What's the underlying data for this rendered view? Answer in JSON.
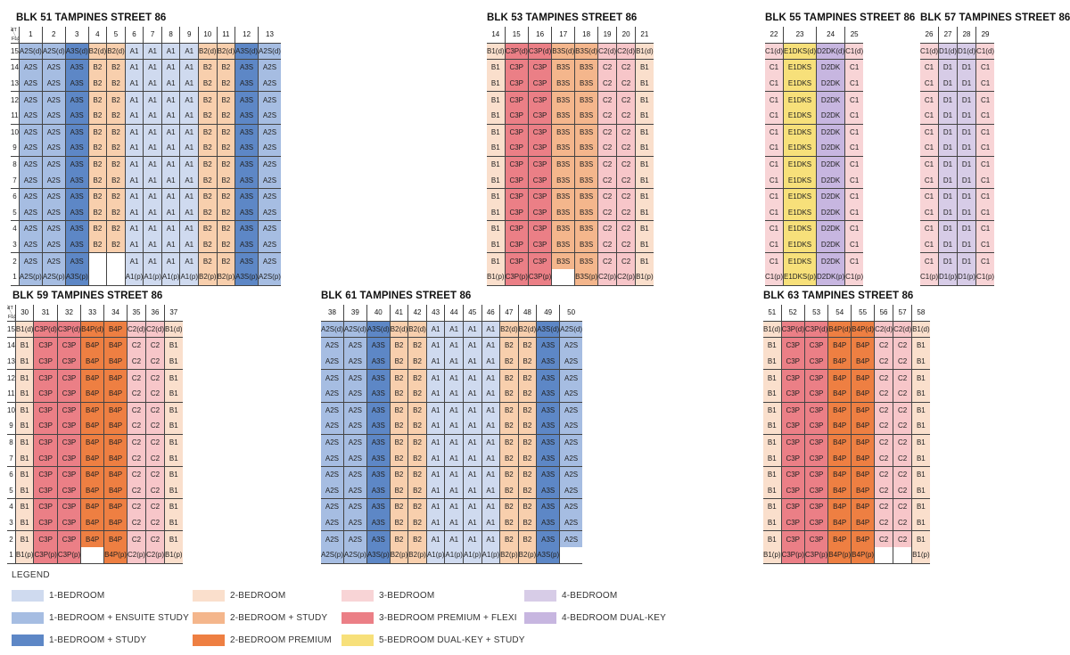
{
  "colors": {
    "A1": "#cfdaef",
    "A2S": "#a6bde2",
    "A3S": "#5d87c6",
    "B1": "#fadfcc",
    "B2": "#f8cfad",
    "B3S": "#f4b68c",
    "B4P": "#ee7f42",
    "C1": "#f8d4d6",
    "C2": "#f7c6c9",
    "C3P": "#eb7f86",
    "D1": "#d7cce7",
    "D2DK": "#c7b6e0",
    "E1DKS": "#f7e07a"
  },
  "corner": {
    "unit": "UNIT",
    "floor": "FLOOR"
  },
  "blocks": [
    {
      "title": "BLK 51 TAMPINES STREET 86",
      "units": [
        "1",
        "2",
        "3",
        "4",
        "5",
        "6",
        "7",
        "8",
        "9",
        "10",
        "11",
        "12",
        "13"
      ],
      "types": [
        "A2S",
        "A2S",
        "A3S",
        "B2",
        "B2",
        "A1",
        "A1",
        "A1",
        "A1",
        "B2",
        "B2",
        "A3S",
        "A2S"
      ],
      "top": [
        "A2S(d)",
        "A2S(d)",
        "A3S(d)",
        "B2(d)",
        "B2(d)",
        "A1",
        "A1",
        "A1",
        "A1",
        "B2(d)",
        "B2(d)",
        "A3S(d)",
        "A2S(d)"
      ],
      "body": [
        "A2S",
        "A2S",
        "A3S",
        "B2",
        "B2",
        "A1",
        "A1",
        "A1",
        "A1",
        "B2",
        "B2",
        "A3S",
        "A2S"
      ],
      "f2": [
        "A2S",
        "A2S",
        "A3S",
        "",
        "",
        "A1",
        "A1",
        "A1",
        "A1",
        "B2",
        "B2",
        "A3S",
        "A2S"
      ],
      "f1": [
        "A2S(p)",
        "A2S(p)",
        "A3S(p)",
        "",
        "",
        "A1(p)",
        "A1(p)",
        "A1(p)",
        "A1(p)",
        "B2(p)",
        "B2(p)",
        "A3S(p)",
        "A2S(p)"
      ]
    },
    {
      "title": "BLK 53 TAMPINES STREET 86",
      "units": [
        "14",
        "15",
        "16",
        "17",
        "18",
        "19",
        "20",
        "21"
      ],
      "types": [
        "B1",
        "C3P",
        "C3P",
        "B3S",
        "B3S",
        "C2",
        "C2",
        "B1"
      ],
      "top": [
        "B1(d)",
        "C3P(d)",
        "C3P(d)",
        "B3S(d)",
        "B3S(d)",
        "C2(d)",
        "C2(d)",
        "B1(d)"
      ],
      "body": [
        "B1",
        "C3P",
        "C3P",
        "B3S",
        "B3S",
        "C2",
        "C2",
        "B1"
      ],
      "f1": [
        "B1(p)",
        "C3P(p)",
        "C3P(p)",
        "",
        "B3S(p)",
        "C2(p)",
        "C2(p)",
        "B1(p)"
      ]
    },
    {
      "title": "BLK 55 TAMPINES STREET 86",
      "units": [
        "22",
        "23",
        "24",
        "25"
      ],
      "types": [
        "C1",
        "E1DKS",
        "D2DK",
        "C1"
      ],
      "top": [
        "C1(d)",
        "E1DKS(d)",
        "D2DK(d)",
        "C1(d)"
      ],
      "body": [
        "C1",
        "E1DKS",
        "D2DK",
        "C1"
      ],
      "f1": [
        "C1(p)",
        "E1DKS(p)",
        "D2DK(p)",
        "C1(p)"
      ]
    },
    {
      "title": "BLK 57 TAMPINES STREET 86",
      "units": [
        "26",
        "27",
        "28",
        "29"
      ],
      "types": [
        "C1",
        "D1",
        "D1",
        "C1"
      ],
      "top": [
        "C1(d)",
        "D1(d)",
        "D1(d)",
        "C1(d)"
      ],
      "body": [
        "C1",
        "D1",
        "D1",
        "C1"
      ],
      "f1": [
        "C1(p)",
        "D1(p)",
        "D1(p)",
        "C1(p)"
      ]
    },
    {
      "title": "BLK 59 TAMPINES STREET 86",
      "units": [
        "30",
        "31",
        "32",
        "33",
        "34",
        "35",
        "36",
        "37"
      ],
      "types": [
        "B1",
        "C3P",
        "C3P",
        "B4P",
        "B4P",
        "C2",
        "C2",
        "B1"
      ],
      "top": [
        "B1(d)",
        "C3P(d)",
        "C3P(d)",
        "B4P(d)",
        "B4P",
        "C2(d)",
        "C2(d)",
        "B1(d)"
      ],
      "body": [
        "B1",
        "C3P",
        "C3P",
        "B4P",
        "B4P",
        "C2",
        "C2",
        "B1"
      ],
      "f1": [
        "B1(p)",
        "C3P(p)",
        "C3P(p)",
        "",
        "B4P(p)",
        "C2(p)",
        "C2(p)",
        "B1(p)"
      ]
    },
    {
      "title": "BLK 61 TAMPINES STREET 86",
      "units": [
        "38",
        "39",
        "40",
        "41",
        "42",
        "43",
        "44",
        "45",
        "46",
        "47",
        "48",
        "49",
        "50"
      ],
      "types": [
        "A2S",
        "A2S",
        "A3S",
        "B2",
        "B2",
        "A1",
        "A1",
        "A1",
        "A1",
        "B2",
        "B2",
        "A3S",
        "A2S"
      ],
      "top": [
        "A2S(d)",
        "A2S(d)",
        "A3S(d)",
        "B2(d)",
        "B2(d)",
        "A1",
        "A1",
        "A1",
        "A1",
        "B2(d)",
        "B2(d)",
        "A3S(d)",
        "A2S(d)"
      ],
      "body": [
        "A2S",
        "A2S",
        "A3S",
        "B2",
        "B2",
        "A1",
        "A1",
        "A1",
        "A1",
        "B2",
        "B2",
        "A3S",
        "A2S"
      ],
      "f1": [
        "A2S(p)",
        "A2S(p)",
        "A3S(p)",
        "B2(p)",
        "B2(p)",
        "A1(p)",
        "A1(p)",
        "A1(p)",
        "A1(p)",
        "B2(p)",
        "B2(p)",
        "A3S(p)",
        ""
      ]
    },
    {
      "title": "BLK 63 TAMPINES STREET 86",
      "units": [
        "51",
        "52",
        "53",
        "54",
        "55",
        "56",
        "57",
        "58"
      ],
      "types": [
        "B1",
        "C3P",
        "C3P",
        "B4P",
        "B4P",
        "C2",
        "C2",
        "B1"
      ],
      "top": [
        "B1(d)",
        "C3P(d)",
        "C3P(d)",
        "B4P(d)",
        "B4P(d)",
        "C2(d)",
        "C2(d)",
        "B1(d)"
      ],
      "body": [
        "B1",
        "C3P",
        "C3P",
        "B4P",
        "B4P",
        "C2",
        "C2",
        "B1"
      ],
      "f1": [
        "B1(p)",
        "C3P(p)",
        "C3P(p)",
        "B4P(p)",
        "B4P(p)",
        "",
        "",
        "B1(p)"
      ]
    }
  ],
  "legend": {
    "title": "LEGEND",
    "items": [
      {
        "label": "1-BEDROOM",
        "type": "A1"
      },
      {
        "label": "2-BEDROOM",
        "type": "B1"
      },
      {
        "label": "3-BEDROOM",
        "type": "C1"
      },
      {
        "label": "4-BEDROOM",
        "type": "D1"
      },
      {
        "label": "1-BEDROOM + ENSUITE STUDY",
        "type": "A2S"
      },
      {
        "label": "2-BEDROOM + STUDY",
        "type": "B3S"
      },
      {
        "label": "3-BEDROOM PREMIUM + FLEXI",
        "type": "C3P"
      },
      {
        "label": "4-BEDROOM DUAL-KEY",
        "type": "D2DK"
      },
      {
        "label": "1-BEDROOM + STUDY",
        "type": "A3S"
      },
      {
        "label": "2-BEDROOM PREMIUM",
        "type": "B4P"
      },
      {
        "label": "5-BEDROOM DUAL-KEY + STUDY",
        "type": "E1DKS"
      }
    ]
  }
}
